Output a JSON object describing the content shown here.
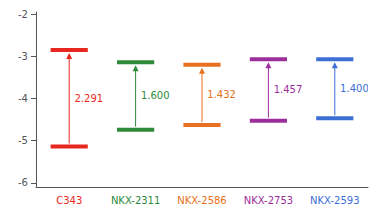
{
  "chart_data": {
    "type": "levels",
    "categories": [
      "C343",
      "NKX-2311",
      "NKX-2586",
      "NKX-2753",
      "NKX-2593"
    ],
    "colors": [
      "#e8281e",
      "#2e8b3a",
      "#e87020",
      "#9b2e9b",
      "#3b6fd4"
    ],
    "series": [
      {
        "values": [
          -2.85,
          -3.14,
          -3.2,
          -3.07,
          -3.07
        ]
      },
      {
        "values": [
          -5.141,
          -4.74,
          -4.632,
          -4.527,
          -4.47
        ]
      }
    ],
    "gaps": [
      2.291,
      1.6,
      1.432,
      1.457,
      1.4
    ],
    "gap_labels": [
      "2.291",
      "1.600",
      "1.432",
      "1.457",
      "1.400"
    ],
    "ylim": [
      -6.1,
      -1.95
    ],
    "yticks": [
      -6,
      -5,
      -4,
      -3,
      -2
    ],
    "grid": false
  }
}
